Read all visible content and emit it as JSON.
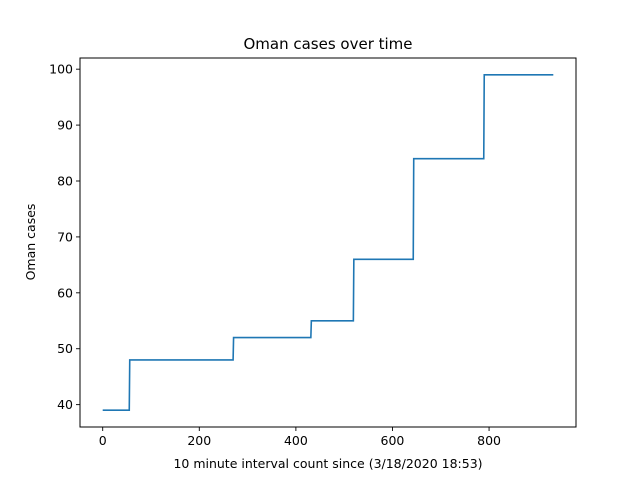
{
  "chart_data": {
    "type": "line",
    "title": "Oman cases over time",
    "xlabel": "10 minute interval count since (3/18/2020 18:53)",
    "ylabel": "Oman cases",
    "xlim": [
      -47,
      980
    ],
    "ylim": [
      36,
      102
    ],
    "xticks": [
      0,
      200,
      400,
      600,
      800
    ],
    "yticks": [
      40,
      50,
      60,
      70,
      80,
      90,
      100
    ],
    "grid": false,
    "line_color": "#1f77b4",
    "series": [
      {
        "x": [
          0,
          55,
          56,
          270,
          271,
          431,
          432,
          519,
          520,
          643,
          644,
          789,
          790,
          933
        ],
        "y": [
          39,
          39,
          48,
          48,
          52,
          52,
          55,
          55,
          66,
          66,
          84,
          84,
          99,
          99
        ]
      }
    ]
  }
}
